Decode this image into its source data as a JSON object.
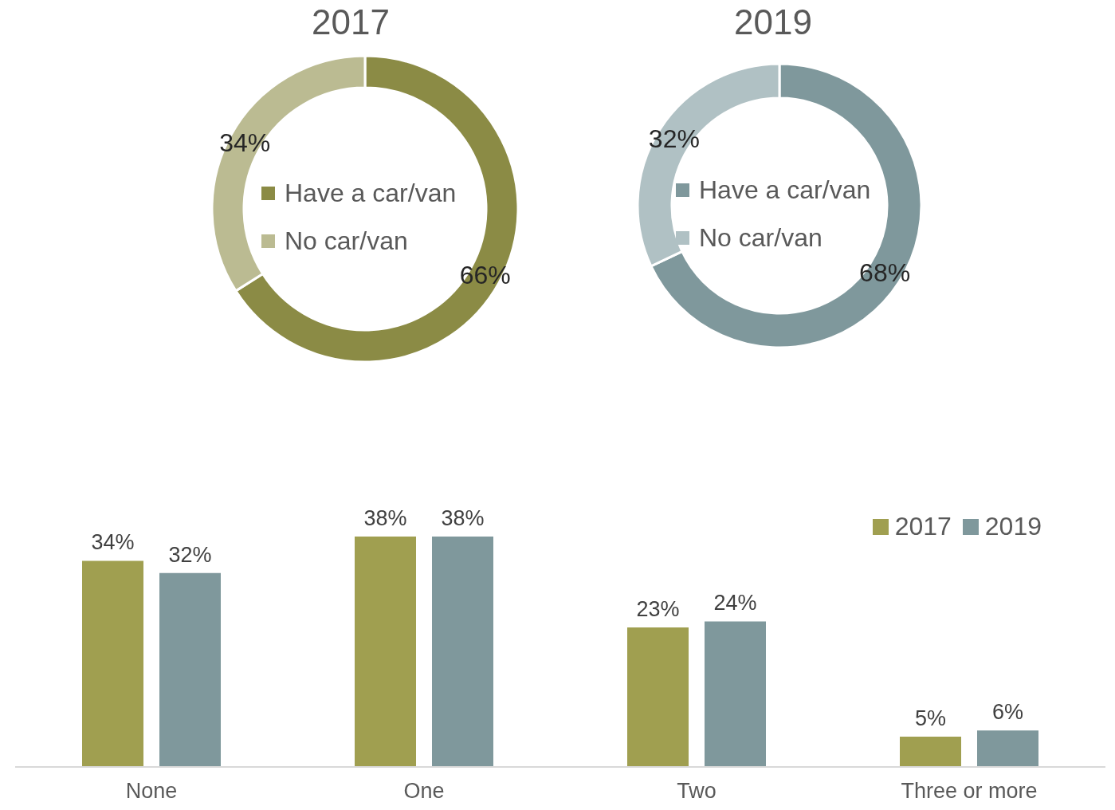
{
  "chart_data": [
    {
      "type": "donut",
      "title": "2017",
      "categories": [
        "Have a car/van",
        "No car/van"
      ],
      "values": [
        66,
        34
      ],
      "colors": [
        "#8b8b45",
        "#bbbb92"
      ],
      "value_labels": [
        "66%",
        "34%"
      ],
      "legend": "center"
    },
    {
      "type": "donut",
      "title": "2019",
      "categories": [
        "Have a car/van",
        "No car/van"
      ],
      "values": [
        68,
        32
      ],
      "colors": [
        "#7f989c",
        "#b0c1c4"
      ],
      "value_labels": [
        "68%",
        "32%"
      ],
      "legend": "center"
    },
    {
      "type": "bar",
      "categories": [
        "None",
        "One",
        "Two",
        "Three or more"
      ],
      "legend": "top right",
      "series": [
        {
          "name": "2017",
          "color": "#a09f50",
          "values": [
            34,
            38,
            23,
            5
          ],
          "value_labels": [
            "34%",
            "38%",
            "23%",
            "5%"
          ]
        },
        {
          "name": "2019",
          "color": "#7f989c",
          "values": [
            32,
            38,
            24,
            6
          ],
          "value_labels": [
            "32%",
            "38%",
            "24%",
            "6%"
          ]
        }
      ]
    }
  ]
}
